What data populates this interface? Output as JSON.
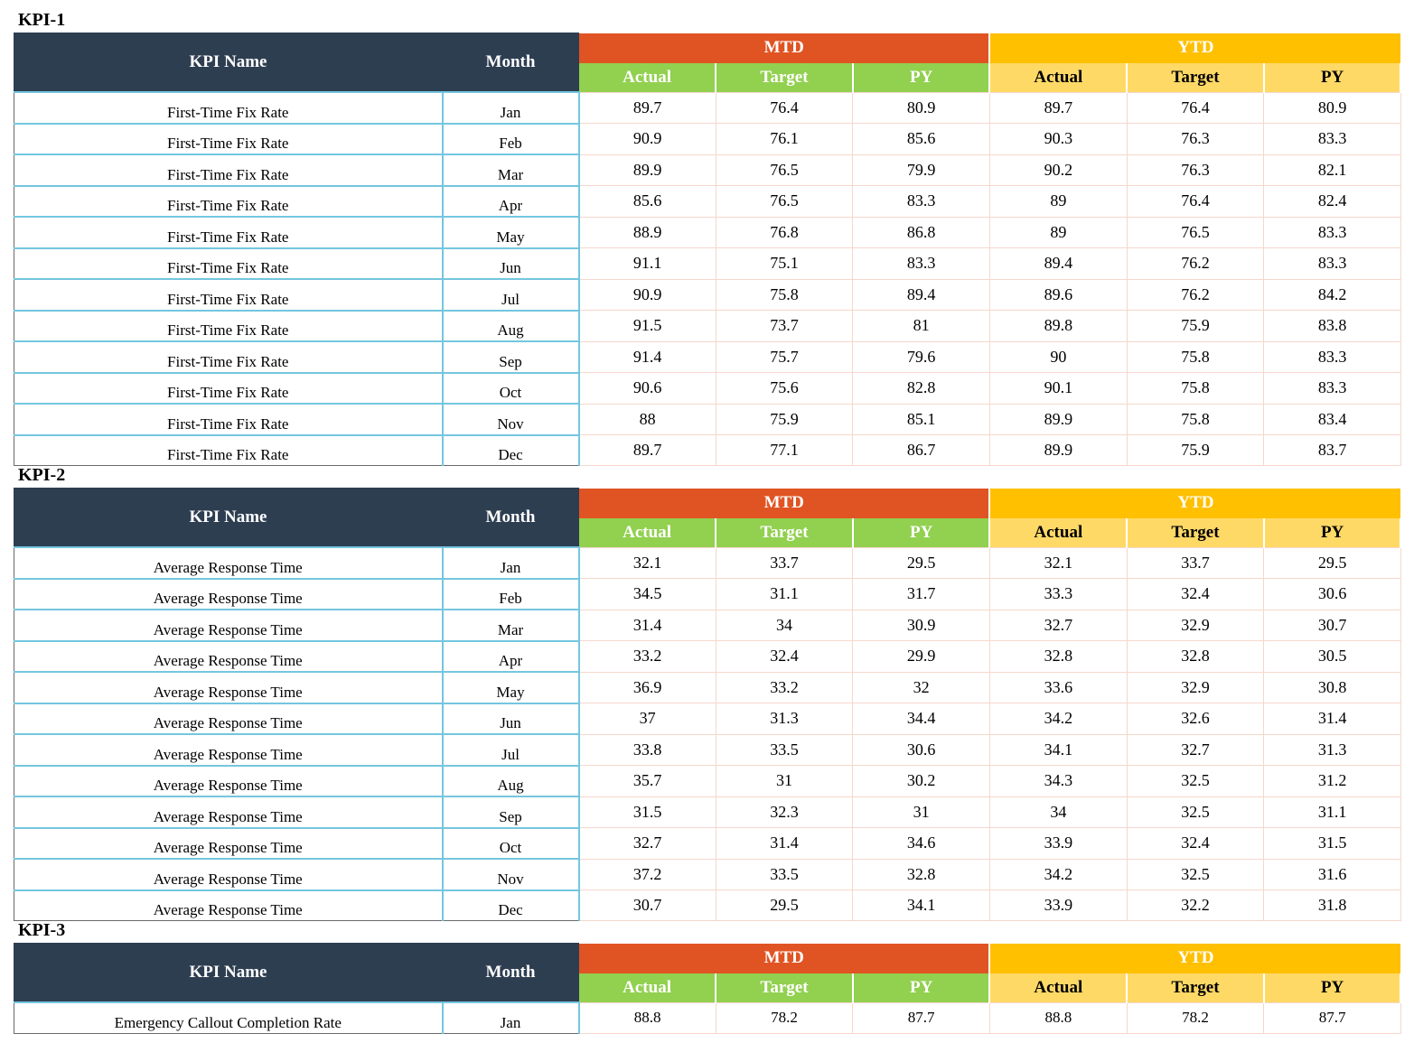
{
  "headers": {
    "kpi_name": "KPI Name",
    "month": "Month",
    "mtd": "MTD",
    "ytd": "YTD",
    "actual": "Actual",
    "target": "Target",
    "py": "PY"
  },
  "kpis": [
    {
      "title": "KPI-1",
      "rows": [
        {
          "name": "First-Time Fix Rate",
          "month": "Jan",
          "mtd_actual": "89.7",
          "mtd_target": "76.4",
          "mtd_py": "80.9",
          "ytd_actual": "89.7",
          "ytd_target": "76.4",
          "ytd_py": "80.9"
        },
        {
          "name": "First-Time Fix Rate",
          "month": "Feb",
          "mtd_actual": "90.9",
          "mtd_target": "76.1",
          "mtd_py": "85.6",
          "ytd_actual": "90.3",
          "ytd_target": "76.3",
          "ytd_py": "83.3"
        },
        {
          "name": "First-Time Fix Rate",
          "month": "Mar",
          "mtd_actual": "89.9",
          "mtd_target": "76.5",
          "mtd_py": "79.9",
          "ytd_actual": "90.2",
          "ytd_target": "76.3",
          "ytd_py": "82.1"
        },
        {
          "name": "First-Time Fix Rate",
          "month": "Apr",
          "mtd_actual": "85.6",
          "mtd_target": "76.5",
          "mtd_py": "83.3",
          "ytd_actual": "89",
          "ytd_target": "76.4",
          "ytd_py": "82.4"
        },
        {
          "name": "First-Time Fix Rate",
          "month": "May",
          "mtd_actual": "88.9",
          "mtd_target": "76.8",
          "mtd_py": "86.8",
          "ytd_actual": "89",
          "ytd_target": "76.5",
          "ytd_py": "83.3"
        },
        {
          "name": "First-Time Fix Rate",
          "month": "Jun",
          "mtd_actual": "91.1",
          "mtd_target": "75.1",
          "mtd_py": "83.3",
          "ytd_actual": "89.4",
          "ytd_target": "76.2",
          "ytd_py": "83.3"
        },
        {
          "name": "First-Time Fix Rate",
          "month": "Jul",
          "mtd_actual": "90.9",
          "mtd_target": "75.8",
          "mtd_py": "89.4",
          "ytd_actual": "89.6",
          "ytd_target": "76.2",
          "ytd_py": "84.2"
        },
        {
          "name": "First-Time Fix Rate",
          "month": "Aug",
          "mtd_actual": "91.5",
          "mtd_target": "73.7",
          "mtd_py": "81",
          "ytd_actual": "89.8",
          "ytd_target": "75.9",
          "ytd_py": "83.8"
        },
        {
          "name": "First-Time Fix Rate",
          "month": "Sep",
          "mtd_actual": "91.4",
          "mtd_target": "75.7",
          "mtd_py": "79.6",
          "ytd_actual": "90",
          "ytd_target": "75.8",
          "ytd_py": "83.3"
        },
        {
          "name": "First-Time Fix Rate",
          "month": "Oct",
          "mtd_actual": "90.6",
          "mtd_target": "75.6",
          "mtd_py": "82.8",
          "ytd_actual": "90.1",
          "ytd_target": "75.8",
          "ytd_py": "83.3"
        },
        {
          "name": "First-Time Fix Rate",
          "month": "Nov",
          "mtd_actual": "88",
          "mtd_target": "75.9",
          "mtd_py": "85.1",
          "ytd_actual": "89.9",
          "ytd_target": "75.8",
          "ytd_py": "83.4"
        },
        {
          "name": "First-Time Fix Rate",
          "month": "Dec",
          "mtd_actual": "89.7",
          "mtd_target": "77.1",
          "mtd_py": "86.7",
          "ytd_actual": "89.9",
          "ytd_target": "75.9",
          "ytd_py": "83.7"
        }
      ]
    },
    {
      "title": "KPI-2",
      "rows": [
        {
          "name": "Average Response Time",
          "month": "Jan",
          "mtd_actual": "32.1",
          "mtd_target": "33.7",
          "mtd_py": "29.5",
          "ytd_actual": "32.1",
          "ytd_target": "33.7",
          "ytd_py": "29.5"
        },
        {
          "name": "Average Response Time",
          "month": "Feb",
          "mtd_actual": "34.5",
          "mtd_target": "31.1",
          "mtd_py": "31.7",
          "ytd_actual": "33.3",
          "ytd_target": "32.4",
          "ytd_py": "30.6"
        },
        {
          "name": "Average Response Time",
          "month": "Mar",
          "mtd_actual": "31.4",
          "mtd_target": "34",
          "mtd_py": "30.9",
          "ytd_actual": "32.7",
          "ytd_target": "32.9",
          "ytd_py": "30.7"
        },
        {
          "name": "Average Response Time",
          "month": "Apr",
          "mtd_actual": "33.2",
          "mtd_target": "32.4",
          "mtd_py": "29.9",
          "ytd_actual": "32.8",
          "ytd_target": "32.8",
          "ytd_py": "30.5"
        },
        {
          "name": "Average Response Time",
          "month": "May",
          "mtd_actual": "36.9",
          "mtd_target": "33.2",
          "mtd_py": "32",
          "ytd_actual": "33.6",
          "ytd_target": "32.9",
          "ytd_py": "30.8"
        },
        {
          "name": "Average Response Time",
          "month": "Jun",
          "mtd_actual": "37",
          "mtd_target": "31.3",
          "mtd_py": "34.4",
          "ytd_actual": "34.2",
          "ytd_target": "32.6",
          "ytd_py": "31.4"
        },
        {
          "name": "Average Response Time",
          "month": "Jul",
          "mtd_actual": "33.8",
          "mtd_target": "33.5",
          "mtd_py": "30.6",
          "ytd_actual": "34.1",
          "ytd_target": "32.7",
          "ytd_py": "31.3"
        },
        {
          "name": "Average Response Time",
          "month": "Aug",
          "mtd_actual": "35.7",
          "mtd_target": "31",
          "mtd_py": "30.2",
          "ytd_actual": "34.3",
          "ytd_target": "32.5",
          "ytd_py": "31.2"
        },
        {
          "name": "Average Response Time",
          "month": "Sep",
          "mtd_actual": "31.5",
          "mtd_target": "32.3",
          "mtd_py": "31",
          "ytd_actual": "34",
          "ytd_target": "32.5",
          "ytd_py": "31.1"
        },
        {
          "name": "Average Response Time",
          "month": "Oct",
          "mtd_actual": "32.7",
          "mtd_target": "31.4",
          "mtd_py": "34.6",
          "ytd_actual": "33.9",
          "ytd_target": "32.4",
          "ytd_py": "31.5"
        },
        {
          "name": "Average Response Time",
          "month": "Nov",
          "mtd_actual": "37.2",
          "mtd_target": "33.5",
          "mtd_py": "32.8",
          "ytd_actual": "34.2",
          "ytd_target": "32.5",
          "ytd_py": "31.6"
        },
        {
          "name": "Average Response Time",
          "month": "Dec",
          "mtd_actual": "30.7",
          "mtd_target": "29.5",
          "mtd_py": "34.1",
          "ytd_actual": "33.9",
          "ytd_target": "32.2",
          "ytd_py": "31.8"
        }
      ]
    },
    {
      "title": "KPI-3",
      "rows": [
        {
          "name": "Emergency Callout Completion Rate",
          "month": "Jan",
          "mtd_actual": "88.8",
          "mtd_target": "78.2",
          "mtd_py": "87.7",
          "ytd_actual": "88.8",
          "ytd_target": "78.2",
          "ytd_py": "87.7"
        }
      ]
    }
  ]
}
